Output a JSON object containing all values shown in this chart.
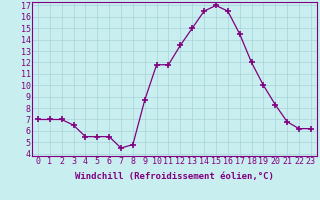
{
  "x": [
    0,
    1,
    2,
    3,
    4,
    5,
    6,
    7,
    8,
    9,
    10,
    11,
    12,
    13,
    14,
    15,
    16,
    17,
    18,
    19,
    20,
    21,
    22,
    23
  ],
  "y": [
    7.0,
    7.0,
    7.0,
    6.5,
    5.5,
    5.5,
    5.5,
    4.5,
    4.8,
    8.7,
    11.8,
    11.8,
    13.5,
    15.0,
    16.5,
    17.0,
    16.5,
    14.5,
    12.0,
    10.0,
    8.3,
    6.8,
    6.2,
    6.2
  ],
  "line_color": "#800080",
  "marker": "+",
  "marker_size": 4,
  "marker_lw": 1.2,
  "bg_color": "#c8eef0",
  "grid_color": "#a8d4d8",
  "xlabel": "Windchill (Refroidissement éolien,°C)",
  "xlabel_fontsize": 6.5,
  "tick_fontsize": 6,
  "ylim_min": 3.8,
  "ylim_max": 17.3,
  "xlim_min": -0.5,
  "xlim_max": 23.5,
  "yticks": [
    4,
    5,
    6,
    7,
    8,
    9,
    10,
    11,
    12,
    13,
    14,
    15,
    16,
    17
  ],
  "xticks": [
    0,
    1,
    2,
    3,
    4,
    5,
    6,
    7,
    8,
    9,
    10,
    11,
    12,
    13,
    14,
    15,
    16,
    17,
    18,
    19,
    20,
    21,
    22,
    23
  ]
}
